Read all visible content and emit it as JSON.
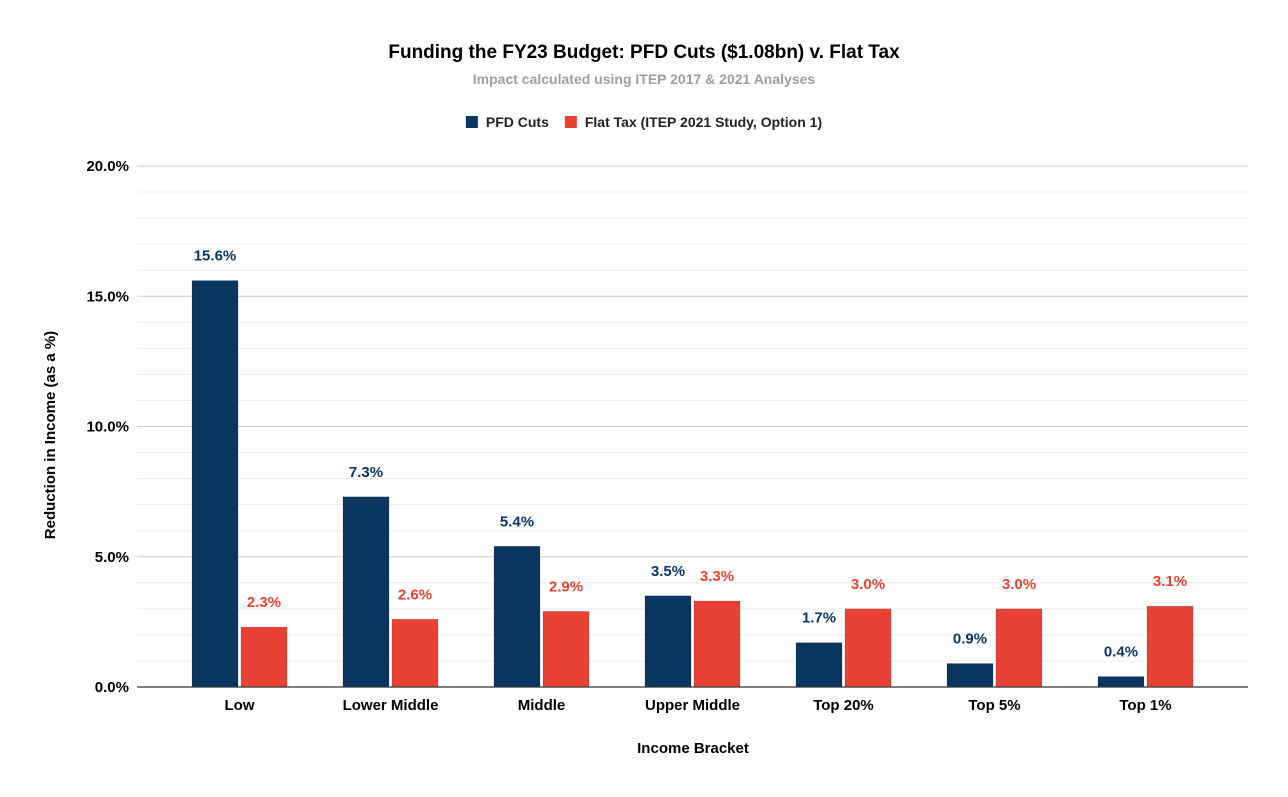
{
  "chart_data": {
    "type": "bar",
    "title": "Funding the FY23 Budget: PFD Cuts ($1.08bn) v. Flat Tax",
    "subtitle": "Impact calculated using ITEP 2017 & 2021 Analyses",
    "xlabel": "Income Bracket",
    "ylabel": "Reduction in Income (as a %)",
    "categories": [
      "Low",
      "Lower Middle",
      "Middle",
      "Upper Middle",
      "Top 20%",
      "Top 5%",
      "Top 1%"
    ],
    "series": [
      {
        "name": "PFD Cuts",
        "color": "#0b3660",
        "values": [
          15.6,
          7.3,
          5.4,
          3.5,
          1.7,
          0.9,
          0.4
        ],
        "labels": [
          "15.6%",
          "7.3%",
          "5.4%",
          "3.5%",
          "1.7%",
          "0.9%",
          "0.4%"
        ]
      },
      {
        "name": "Flat Tax (ITEP 2021 Study, Option 1)",
        "color": "#e94235",
        "values": [
          2.3,
          2.6,
          2.9,
          3.3,
          3.0,
          3.0,
          3.1
        ],
        "labels": [
          "2.3%",
          "2.6%",
          "2.9%",
          "3.3%",
          "3.0%",
          "3.0%",
          "3.1%"
        ]
      }
    ],
    "ylim": [
      0,
      20
    ],
    "yticks": [
      0,
      5,
      10,
      15,
      20
    ],
    "ytick_labels": [
      "0.0%",
      "5.0%",
      "10.0%",
      "15.0%",
      "20.0%"
    ],
    "grid": true,
    "legend_position": "top-center"
  }
}
